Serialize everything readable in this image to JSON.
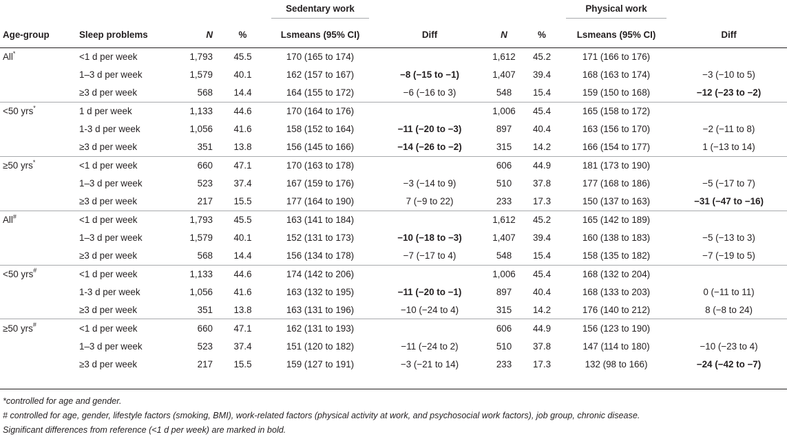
{
  "groups": {
    "sedentary": "Sedentary work",
    "physical": "Physical work"
  },
  "headers": {
    "age_group": "Age-group",
    "sleep_problems": "Sleep problems",
    "n": "N",
    "pct": "%",
    "lsmeans": "Lsmeans (95% CI)",
    "diff": "Diff",
    "n2": "N",
    "pct2": "%",
    "lsmeans2": "Lsmeans (95% CI)",
    "diff2": "Diff"
  },
  "rows": [
    {
      "age": "All",
      "sup": "*",
      "sleep": "<1 d per week",
      "n1": "1,793",
      "p1": "45.5",
      "ls1": "170 (165 to 174)",
      "d1": "",
      "d1b": false,
      "n2": "1,612",
      "p2": "45.2",
      "ls2": "171 (166 to 176)",
      "d2": "",
      "d2b": false
    },
    {
      "age": "",
      "sup": "",
      "sleep": "1–3 d per week",
      "n1": "1,579",
      "p1": "40.1",
      "ls1": "162 (157 to 167)",
      "d1": "−8 (−15 to −1)",
      "d1b": true,
      "n2": "1,407",
      "p2": "39.4",
      "ls2": "168 (163 to 174)",
      "d2": "−3 (−10 to 5)",
      "d2b": false
    },
    {
      "age": "",
      "sup": "",
      "sleep": "≥3 d per week",
      "n1": "568",
      "p1": "14.4",
      "ls1": "164 (155 to 172)",
      "d1": "−6 (−16 to 3)",
      "d1b": false,
      "n2": "548",
      "p2": "15.4",
      "ls2": "159 (150 to 168)",
      "d2": "−12 (−23 to −2)",
      "d2b": true
    },
    {
      "age": "<50 yrs",
      "sup": "*",
      "sleep": "1 d per week",
      "n1": "1,133",
      "p1": "44.6",
      "ls1": "170 (164 to 176)",
      "d1": "",
      "d1b": false,
      "n2": "1,006",
      "p2": "45.4",
      "ls2": "165 (158 to 172)",
      "d2": "",
      "d2b": false
    },
    {
      "age": "",
      "sup": "",
      "sleep": "1-3 d per week",
      "n1": "1,056",
      "p1": "41.6",
      "ls1": "158 (152 to 164)",
      "d1": "−11 (−20 to −3)",
      "d1b": true,
      "n2": "897",
      "p2": "40.4",
      "ls2": "163 (156 to 170)",
      "d2": "−2 (−11 to 8)",
      "d2b": false
    },
    {
      "age": "",
      "sup": "",
      "sleep": "≥3 d per week",
      "n1": "351",
      "p1": "13.8",
      "ls1": "156 (145 to 166)",
      "d1": "−14 (−26 to −2)",
      "d1b": true,
      "n2": "315",
      "p2": "14.2",
      "ls2": "166 (154 to 177)",
      "d2": "1 (−13 to 14)",
      "d2b": false
    },
    {
      "age": "≥50 yrs",
      "sup": "*",
      "sleep": "<1 d per week",
      "n1": "660",
      "p1": "47.1",
      "ls1": "170 (163 to 178)",
      "d1": "",
      "d1b": false,
      "n2": "606",
      "p2": "44.9",
      "ls2": "181 (173 to 190)",
      "d2": "",
      "d2b": false
    },
    {
      "age": "",
      "sup": "",
      "sleep": "1–3 d per week",
      "n1": "523",
      "p1": "37.4",
      "ls1": "167 (159 to 176)",
      "d1": "−3 (−14 to 9)",
      "d1b": false,
      "n2": "510",
      "p2": "37.8",
      "ls2": "177 (168 to 186)",
      "d2": "−5 (−17 to 7)",
      "d2b": false
    },
    {
      "age": "",
      "sup": "",
      "sleep": "≥3 d per week",
      "n1": "217",
      "p1": "15.5",
      "ls1": "177 (164 to 190)",
      "d1": "7 (−9 to 22)",
      "d1b": false,
      "n2": "233",
      "p2": "17.3",
      "ls2": "150 (137 to 163)",
      "d2": "−31 (−47 to −16)",
      "d2b": true
    },
    {
      "age": "All",
      "sup": "#",
      "sleep": "<1 d per week",
      "n1": "1,793",
      "p1": "45.5",
      "ls1": "163 (141 to 184)",
      "d1": "",
      "d1b": false,
      "n2": "1,612",
      "p2": "45.2",
      "ls2": "165 (142 to 189)",
      "d2": "",
      "d2b": false
    },
    {
      "age": "",
      "sup": "",
      "sleep": "1–3 d per week",
      "n1": "1,579",
      "p1": "40.1",
      "ls1": "152 (131 to 173)",
      "d1": "−10 (−18 to −3)",
      "d1b": true,
      "n2": "1,407",
      "p2": "39.4",
      "ls2": "160 (138 to 183)",
      "d2": "−5 (−13 to 3)",
      "d2b": false
    },
    {
      "age": "",
      "sup": "",
      "sleep": "≥3 d per week",
      "n1": "568",
      "p1": "14.4",
      "ls1": "156 (134 to 178)",
      "d1": "−7 (−17 to 4)",
      "d1b": false,
      "n2": "548",
      "p2": "15.4",
      "ls2": "158 (135 to 182)",
      "d2": "−7 (−19 to 5)",
      "d2b": false
    },
    {
      "age": "<50 yrs",
      "sup": "#",
      "sleep": "<1 d per week",
      "n1": "1,133",
      "p1": "44.6",
      "ls1": "174 (142 to 206)",
      "d1": "",
      "d1b": false,
      "n2": "1,006",
      "p2": "45.4",
      "ls2": "168 (132 to 204)",
      "d2": "",
      "d2b": false
    },
    {
      "age": "",
      "sup": "",
      "sleep": "1-3 d per week",
      "n1": "1,056",
      "p1": "41.6",
      "ls1": "163 (132 to 195)",
      "d1": "−11 (−20 to −1)",
      "d1b": true,
      "n2": "897",
      "p2": "40.4",
      "ls2": "168 (133 to 203)",
      "d2": "0 (−11 to 11)",
      "d2b": false
    },
    {
      "age": "",
      "sup": "",
      "sleep": "≥3 d per week",
      "n1": "351",
      "p1": "13.8",
      "ls1": "163 (131 to 196)",
      "d1": "−10 (−24 to 4)",
      "d1b": false,
      "n2": "315",
      "p2": "14.2",
      "ls2": "176 (140 to 212)",
      "d2": "8 (−8 to 24)",
      "d2b": false
    },
    {
      "age": "≥50 yrs",
      "sup": "#",
      "sleep": "<1 d per week",
      "n1": "660",
      "p1": "47.1",
      "ls1": "162 (131 to 193)",
      "d1": "",
      "d1b": false,
      "n2": "606",
      "p2": "44.9",
      "ls2": "156 (123 to 190)",
      "d2": "",
      "d2b": false
    },
    {
      "age": "",
      "sup": "",
      "sleep": "1–3 d per week",
      "n1": "523",
      "p1": "37.4",
      "ls1": "151 (120 to 182)",
      "d1": "−11 (−24 to 2)",
      "d1b": false,
      "n2": "510",
      "p2": "37.8",
      "ls2": "147 (114 to 180)",
      "d2": "−10 (−23 to 4)",
      "d2b": false
    },
    {
      "age": "",
      "sup": "",
      "sleep": "≥3 d per week",
      "n1": "217",
      "p1": "15.5",
      "ls1": "159 (127 to 191)",
      "d1": "−3 (−21 to 14)",
      "d1b": false,
      "n2": "233",
      "p2": "17.3",
      "ls2": "132 (98 to 166)",
      "d2": "−24 (−42 to −7)",
      "d2b": true
    }
  ],
  "notes": [
    "*controlled for age and gender.",
    "# controlled for age, gender, lifestyle factors (smoking, BMI), work-related factors (physical activity at work, and psychosocial work factors), job group, chronic disease.",
    "Significant differences from reference (<1 d per week) are marked in bold."
  ]
}
